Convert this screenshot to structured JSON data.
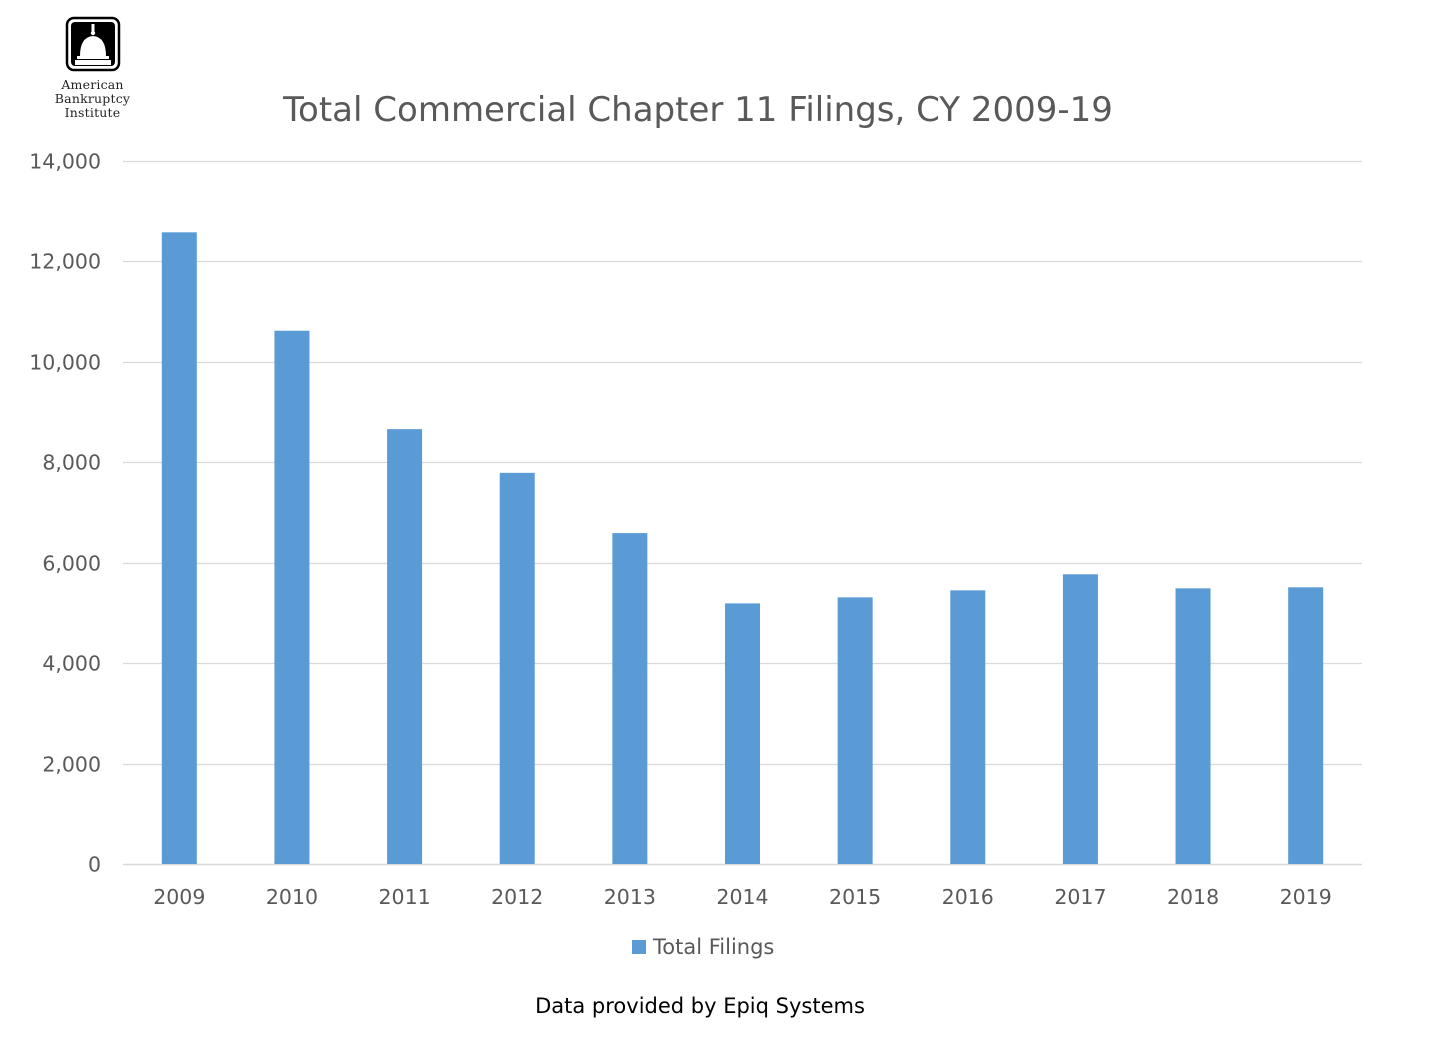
{
  "logo": {
    "icon": "capitol-dome-icon",
    "line1": "American",
    "line2": "Bankruptcy",
    "line3": "Institute"
  },
  "footer": {
    "source": "Data provided by Epiq Systems"
  },
  "colors": {
    "bar": "#5b9bd5",
    "grid": "#d9d9d9",
    "text": "#595959"
  },
  "chart_data": {
    "type": "bar",
    "title": "Total Commercial Chapter 11 Filings, CY 2009-19",
    "xlabel": "",
    "ylabel": "",
    "categories": [
      "2009",
      "2010",
      "2011",
      "2012",
      "2013",
      "2014",
      "2015",
      "2016",
      "2017",
      "2018",
      "2019"
    ],
    "series": [
      {
        "name": "Total Filings",
        "values": [
          12580,
          10620,
          8660,
          7790,
          6590,
          5190,
          5310,
          5450,
          5770,
          5490,
          5510
        ]
      }
    ],
    "ylim": [
      0,
      14000
    ],
    "yticks": [
      0,
      2000,
      4000,
      6000,
      8000,
      10000,
      12000,
      14000
    ],
    "ytick_labels": [
      "0",
      "2,000",
      "4,000",
      "6,000",
      "8,000",
      "10,000",
      "12,000",
      "14,000"
    ],
    "grid": true,
    "legend_position": "bottom-center"
  }
}
